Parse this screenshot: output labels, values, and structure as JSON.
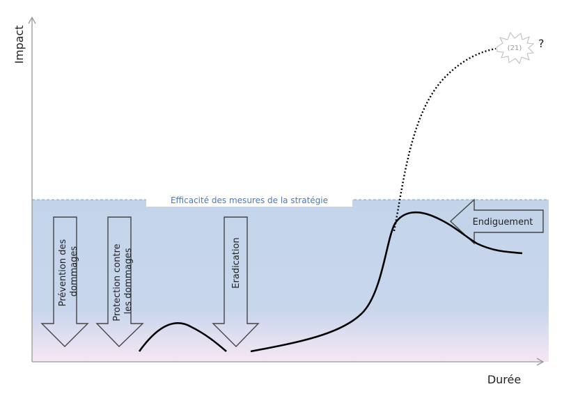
{
  "axes": {
    "y_label": "Impact",
    "x_label": "Durée"
  },
  "threshold": {
    "label": "Efficacité des mesures de la stratégie",
    "color": "#4a7ab8"
  },
  "measures": [
    {
      "line1": "Prévention des",
      "line2": "dommages"
    },
    {
      "line1": "Protection contre",
      "line2": "les dommages"
    },
    {
      "line1": "Eradication",
      "line2": ""
    }
  ],
  "containment": {
    "label": "Endiguement"
  },
  "burst": {
    "label": "(21)",
    "question": "?"
  },
  "colors": {
    "zone_top": "#c3d4ea",
    "zone_bottom": "#f6e6f3",
    "curve": "#000000"
  }
}
